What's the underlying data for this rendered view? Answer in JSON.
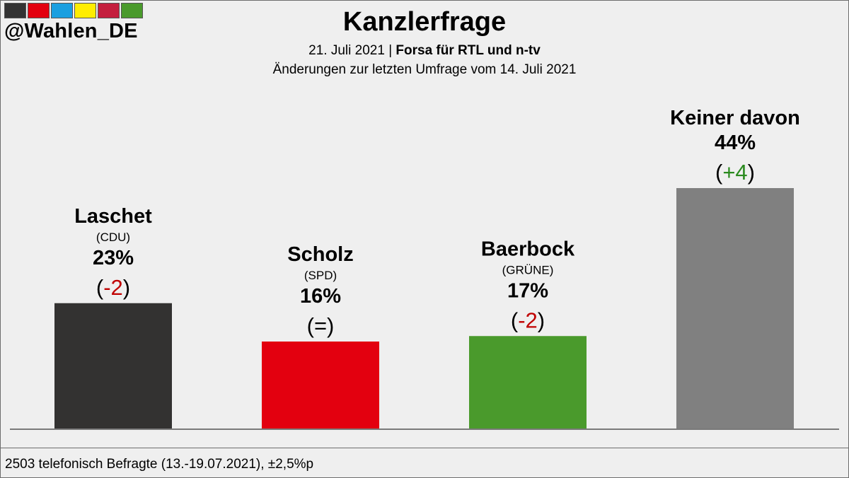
{
  "brand": {
    "handle": "@Wahlen_DE",
    "strip_colors": [
      "#333333",
      "#e3000f",
      "#1a9fe0",
      "#ffed00",
      "#c41f3e",
      "#4a9a2c"
    ]
  },
  "header": {
    "title": "Kanzlerfrage",
    "date": "21. Juli 2021",
    "separator": "|",
    "source": "Forsa für RTL und n-tv",
    "comparison": "Änderungen zur letzten Umfrage vom 14. Juli 2021"
  },
  "footer": {
    "note": "2503 telefonisch Befragte (13.-19.07.2021), ±2,5%p"
  },
  "chart_data": {
    "type": "bar",
    "title": "Kanzlerfrage",
    "categories": [
      "Laschet",
      "Scholz",
      "Baerbock",
      "Keiner davon"
    ],
    "parties": [
      "(CDU)",
      "(SPD)",
      "(GRÜNE)",
      ""
    ],
    "values": [
      23,
      16,
      17,
      44
    ],
    "value_labels": [
      "23%",
      "16%",
      "17%",
      "44%"
    ],
    "changes": [
      "-2",
      "=",
      "-2",
      "+4"
    ],
    "change_colors": [
      "#c00000",
      "#000000",
      "#c00000",
      "#2a8a1e"
    ],
    "colors": [
      "#333231",
      "#e3000f",
      "#4a9a2c",
      "#808080"
    ],
    "ylim": [
      0,
      50
    ],
    "grid": false
  }
}
